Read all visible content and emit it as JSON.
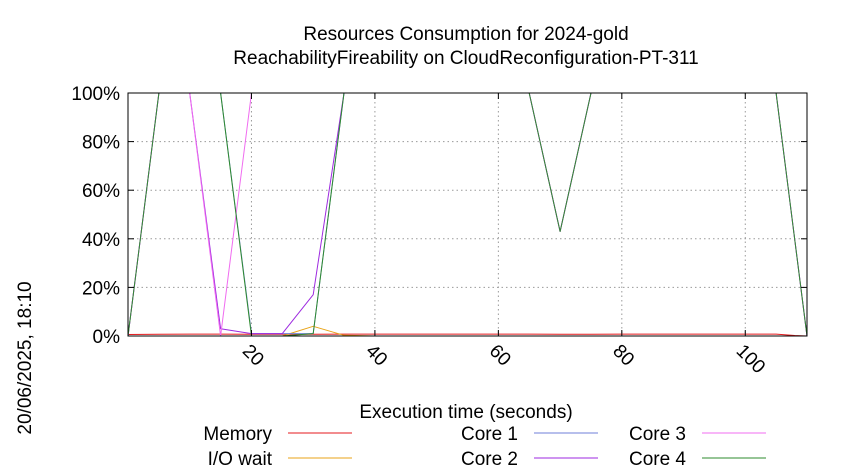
{
  "chart_data": {
    "type": "line",
    "title_lines": [
      "Resources Consumption for 2024-gold",
      "ReachabilityFireability on CloudReconfiguration-PT-311"
    ],
    "xlabel": "Execution time (seconds)",
    "ylabel": "",
    "side_label": "20/06/2025, 18:10",
    "xlim": [
      0,
      110
    ],
    "ylim": [
      0,
      100
    ],
    "x_ticks": [
      20,
      40,
      60,
      80,
      100
    ],
    "y_ticks": [
      0,
      20,
      40,
      60,
      80,
      100
    ],
    "y_tick_labels": [
      "0%",
      "20%",
      "40%",
      "60%",
      "80%",
      "100%"
    ],
    "grid": true,
    "legend_position": "bottom",
    "series": [
      {
        "name": "Memory",
        "color": "#e41a1c",
        "x": [
          0,
          5,
          10,
          15,
          20,
          25,
          30,
          35,
          40,
          45,
          50,
          55,
          60,
          65,
          70,
          75,
          80,
          85,
          90,
          95,
          100,
          105,
          108,
          110
        ],
        "y": [
          0.6,
          0.7,
          0.8,
          0.8,
          0.7,
          0.7,
          0.7,
          0.8,
          0.8,
          0.8,
          0.8,
          0.8,
          0.8,
          0.8,
          0.7,
          0.7,
          0.8,
          0.8,
          0.8,
          0.8,
          0.8,
          0.8,
          0.2,
          0.0
        ]
      },
      {
        "name": "I/O wait",
        "color": "#e8a317",
        "x": [
          0,
          5,
          10,
          15,
          20,
          25,
          30,
          35,
          40,
          60,
          80,
          100,
          110
        ],
        "y": [
          0,
          0,
          0,
          0,
          0,
          0,
          4,
          0.3,
          0,
          0,
          0,
          0,
          0
        ]
      },
      {
        "name": "Core 1",
        "color": "#6f7fd8",
        "x": [
          0,
          5,
          10,
          15,
          20,
          25,
          30,
          35,
          40,
          45,
          50,
          55,
          60,
          65,
          70,
          75,
          80,
          85,
          90,
          95,
          100,
          105,
          110
        ],
        "y": [
          0,
          100,
          100,
          100,
          1,
          1,
          1,
          100,
          100,
          100,
          100,
          100,
          100,
          100,
          43,
          100,
          100,
          100,
          100,
          100,
          100,
          100,
          0
        ]
      },
      {
        "name": "Core 2",
        "color": "#9d2ae0",
        "x": [
          0,
          5,
          10,
          15,
          20,
          25,
          30,
          35,
          40,
          45,
          50,
          55,
          60,
          65,
          70,
          75,
          80,
          85,
          90,
          95,
          100,
          105,
          110
        ],
        "y": [
          0,
          100,
          100,
          3,
          1,
          1,
          17,
          100,
          100,
          100,
          100,
          100,
          100,
          100,
          43,
          100,
          100,
          100,
          100,
          100,
          100,
          100,
          0
        ]
      },
      {
        "name": "Core 3",
        "color": "#f06cf0",
        "x": [
          0,
          5,
          10,
          15,
          20,
          25,
          30,
          35,
          40,
          45,
          50,
          55,
          60,
          65,
          70,
          75,
          80,
          85,
          90,
          95,
          100,
          105,
          110
        ],
        "y": [
          0,
          100,
          100,
          0,
          100,
          100,
          100,
          100,
          100,
          100,
          100,
          100,
          100,
          100,
          43,
          100,
          100,
          100,
          100,
          100,
          100,
          100,
          0
        ]
      },
      {
        "name": "Core 4",
        "color": "#2e8b2e",
        "x": [
          0,
          5,
          10,
          15,
          20,
          25,
          30,
          35,
          40,
          45,
          50,
          55,
          60,
          65,
          70,
          75,
          80,
          85,
          90,
          95,
          100,
          105,
          110
        ],
        "y": [
          0,
          100,
          100,
          100,
          0,
          0,
          1,
          100,
          100,
          100,
          100,
          100,
          100,
          100,
          43,
          100,
          100,
          100,
          100,
          100,
          100,
          100,
          0
        ]
      }
    ]
  }
}
